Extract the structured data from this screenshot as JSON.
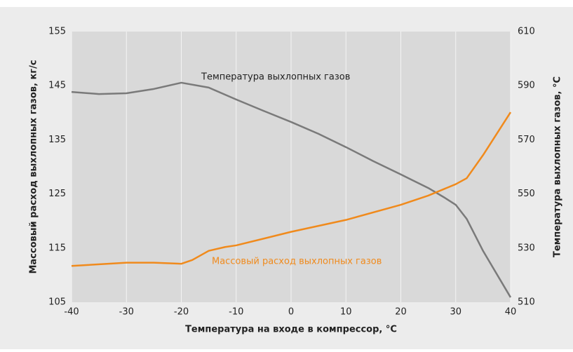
{
  "chart_data": {
    "type": "line",
    "x_label": "Температура на входе в компрессор, °C",
    "y_label": "Массовый расход выхлопных газов, кг/с",
    "y2_label": "Температура выхлопных газов, °C",
    "xlim": [
      -40,
      40
    ],
    "xticks": [
      -40,
      -30,
      -20,
      -10,
      0,
      10,
      20,
      30,
      40
    ],
    "ylim": [
      105,
      155
    ],
    "yticks": [
      105,
      115,
      125,
      135,
      145,
      155
    ],
    "y2lim": [
      510,
      610
    ],
    "y2ticks": [
      510,
      530,
      550,
      570,
      590,
      610
    ],
    "grid": true,
    "series": [
      {
        "name": "Температура выхлопных газов",
        "color": "#7a7a7a",
        "axis": "y2",
        "x": [
          -40,
          -35,
          -30,
          -25,
          -20,
          -15,
          -10,
          -5,
          0,
          5,
          10,
          15,
          20,
          25,
          28,
          30,
          32,
          35,
          40
        ],
        "values": [
          587.7,
          586.9,
          587.2,
          588.8,
          591.1,
          589.3,
          584.9,
          580.7,
          576.6,
          572.2,
          567.3,
          562.1,
          557.2,
          552.2,
          548.6,
          546.0,
          540.8,
          528.9,
          511.8
        ]
      },
      {
        "name": "Массовый расход выхлопных газов",
        "color": "#f08a1c",
        "axis": "y",
        "x": [
          -40,
          -30,
          -25,
          -20,
          -18,
          -15,
          -12,
          -10,
          0,
          10,
          20,
          25,
          30,
          32,
          35,
          40
        ],
        "values": [
          111.7,
          112.3,
          112.3,
          112.1,
          112.8,
          114.5,
          115.2,
          115.5,
          118.0,
          120.2,
          123.0,
          124.7,
          126.8,
          127.9,
          132.2,
          140.1
        ]
      }
    ]
  }
}
